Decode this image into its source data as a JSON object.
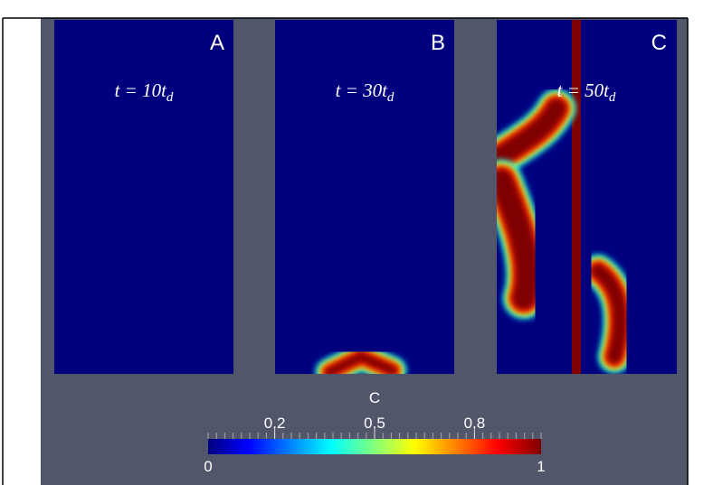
{
  "panels": [
    {
      "label": "A",
      "time": {
        "main": "t = 10t",
        "sub": "d"
      }
    },
    {
      "label": "B",
      "time": {
        "main": "t = 30t",
        "sub": "d"
      }
    },
    {
      "label": "C",
      "time": {
        "main": "t = 50t",
        "sub": "d"
      }
    }
  ],
  "colorbar": {
    "title": "C",
    "range": [
      0,
      1
    ],
    "ticks": [
      0.2,
      0.5,
      0.8
    ]
  }
}
